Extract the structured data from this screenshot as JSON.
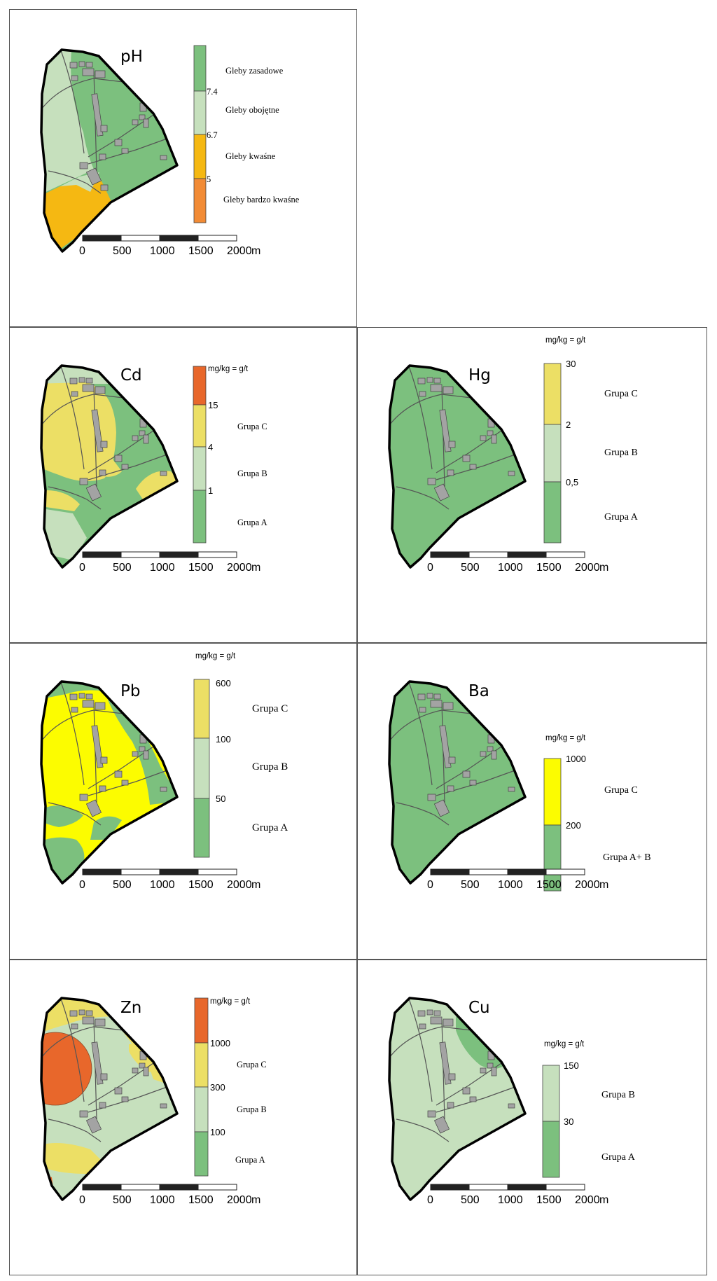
{
  "colors": {
    "green_dark": "#7cc07e",
    "green_light": "#c6e0bd",
    "yellow": "#ecdf65",
    "bright_yellow": "#fcfc00",
    "orange": "#f5b812",
    "light_orange": "#f28b35",
    "red": "#e8672b",
    "buildings": "#a3a3a3",
    "boundary": "#000000"
  },
  "scale_bar": {
    "ticks": [
      "0",
      "500",
      "1000",
      "1500",
      "2000"
    ],
    "unit": "m"
  },
  "panels": [
    {
      "title": "pH",
      "legend_bands": [
        "green_dark",
        "green_light",
        "orange",
        "light_orange"
      ],
      "breaks": [
        "7.4",
        "6.7",
        "5"
      ],
      "classes": [
        "Gleby zasadowe",
        "Gleby obojętne",
        "Gleby kwaśne",
        "Gleby bardzo kwaśne"
      ]
    },
    {
      "title": "Cd",
      "unit": "mg/kg = g/t",
      "legend_bands": [
        "red",
        "yellow",
        "green_light",
        "green_dark"
      ],
      "breaks": [
        "15",
        "4",
        "1"
      ],
      "classes": [
        "Grupa C",
        "Grupa B",
        "Grupa A"
      ]
    },
    {
      "title": "Hg",
      "unit": "mg/kg = g/t",
      "legend_bands": [
        "yellow",
        "green_light",
        "green_dark"
      ],
      "breaks": [
        "30",
        "2",
        "0,5"
      ],
      "classes": [
        "Grupa C",
        "Grupa B",
        "Grupa A"
      ]
    },
    {
      "title": "Pb",
      "unit": "mg/kg = g/t",
      "legend_bands": [
        "yellow",
        "green_light",
        "green_dark"
      ],
      "breaks": [
        "600",
        "100",
        "50"
      ],
      "classes": [
        "Grupa C",
        "Grupa B",
        "Grupa A"
      ]
    },
    {
      "title": "Ba",
      "unit": "mg/kg = g/t",
      "legend_bands": [
        "bright_yellow",
        "green_dark"
      ],
      "breaks": [
        "1000",
        "200"
      ],
      "classes": [
        "Grupa C",
        "Grupa A+ B"
      ]
    },
    {
      "title": "Zn",
      "unit": "mg/kg = g/t",
      "legend_bands": [
        "red",
        "yellow",
        "green_light",
        "green_dark"
      ],
      "breaks": [
        "1000",
        "300",
        "100"
      ],
      "classes": [
        "Grupa C",
        "Grupa B",
        "Grupa A"
      ]
    },
    {
      "title": "Cu",
      "unit": "mg/kg = g/t",
      "legend_bands": [
        "green_light",
        "green_dark"
      ],
      "breaks": [
        "150",
        "30"
      ],
      "classes": [
        "Grupa B",
        "Grupa A"
      ]
    }
  ]
}
